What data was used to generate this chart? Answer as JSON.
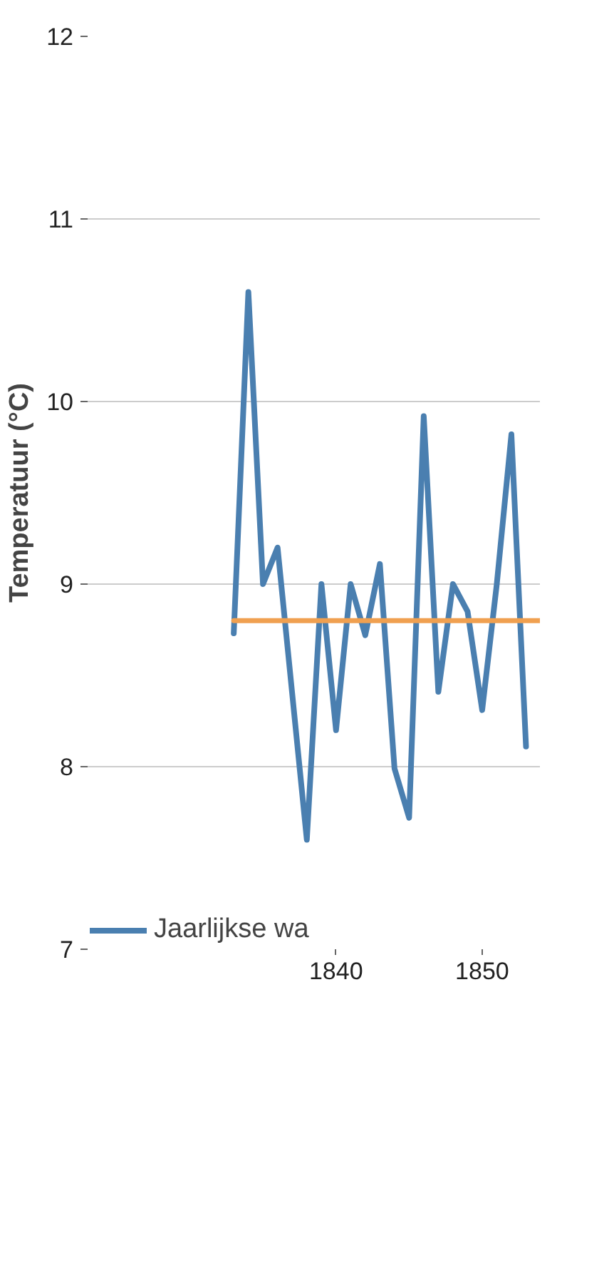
{
  "chart_data": {
    "type": "line",
    "ylabel": "Temperatuur (°C)",
    "xlim": [
      1823,
      1854
    ],
    "xticks": [
      1840,
      1850
    ],
    "ylim": [
      7,
      12
    ],
    "yticks": [
      7,
      8,
      9,
      10,
      11,
      12
    ],
    "grid": "y",
    "legend": "bottom left",
    "line_style": "solid",
    "marker": "none",
    "series": [
      {
        "name": "Jaarlijkse wa",
        "color": "#4a7fb0",
        "x": [
          1833,
          1834,
          1835,
          1836,
          1837,
          1838,
          1839,
          1840,
          1841,
          1842,
          1843,
          1844,
          1845,
          1846,
          1847,
          1848,
          1849,
          1850,
          1851,
          1852,
          1853
        ],
        "values": [
          8.73,
          10.6,
          9.0,
          9.2,
          8.4,
          7.6,
          9.0,
          8.2,
          9.0,
          8.72,
          9.11,
          7.99,
          7.72,
          9.92,
          8.41,
          9.0,
          8.85,
          8.31,
          9.0,
          9.82,
          8.11
        ]
      },
      {
        "color": "#f0a050",
        "x": [
          1833,
          1854
        ],
        "values": [
          8.8,
          8.8
        ]
      }
    ]
  }
}
